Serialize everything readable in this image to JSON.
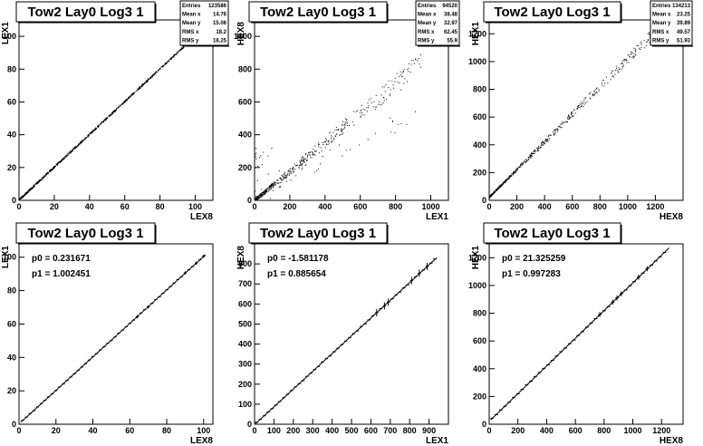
{
  "chart_data": [
    {
      "type": "scatter",
      "title": "Tow2 Lay0 Log3 1",
      "xlabel": "LEX8",
      "ylabel": "LEX1",
      "xlim": [
        0,
        110
      ],
      "ylim": [
        0,
        110
      ],
      "xticks": [
        0,
        20,
        40,
        60,
        80,
        100
      ],
      "yticks": [
        0,
        20,
        40,
        60,
        80,
        100
      ],
      "stats": [
        {
          "label": "Entries",
          "value": "123586"
        },
        {
          "label": "Mean x",
          "value": "14.76"
        },
        {
          "label": "Mean y",
          "value": "15.06"
        },
        {
          "label": "RMS x",
          "value": "18.2"
        },
        {
          "label": "RMS y",
          "value": "18.25"
        }
      ],
      "points": {
        "trend_slope": 1.0,
        "trend_intercept": 0.2,
        "x_range": [
          0,
          100
        ],
        "spread": 0.6
      }
    },
    {
      "type": "scatter",
      "title": "Tow2 Lay0 Log3 1",
      "xlabel": "LEX1",
      "ylabel": "HEX8",
      "xlim": [
        0,
        1100
      ],
      "ylim": [
        0,
        1100
      ],
      "xticks": [
        0,
        200,
        400,
        600,
        800,
        1000
      ],
      "yticks": [
        0,
        200,
        400,
        600,
        800,
        1000
      ],
      "stats": [
        {
          "label": "Entries",
          "value": "94520"
        },
        {
          "label": "Mean x",
          "value": "38.48"
        },
        {
          "label": "Mean y",
          "value": "32.97"
        },
        {
          "label": "RMS x",
          "value": "62.45"
        },
        {
          "label": "RMS y",
          "value": "55.9"
        }
      ],
      "points": {
        "trend_slope": 0.886,
        "trend_intercept": -1.6,
        "x_range": [
          0,
          950
        ],
        "spread": 25
      }
    },
    {
      "type": "scatter",
      "title": "Tow2 Lay0 Log3 1",
      "xlabel": "HEX8",
      "ylabel": "HEX1",
      "xlim": [
        0,
        1400
      ],
      "ylim": [
        0,
        1300
      ],
      "xticks": [
        0,
        200,
        400,
        600,
        800,
        1000,
        1200
      ],
      "yticks": [
        0,
        200,
        400,
        600,
        800,
        1000,
        1200
      ],
      "stats": [
        {
          "label": "Entries",
          "value": "134213"
        },
        {
          "label": "Mean x",
          "value": "23.25"
        },
        {
          "label": "Mean y",
          "value": "39.89"
        },
        {
          "label": "RMS x",
          "value": "49.57"
        },
        {
          "label": "RMS y",
          "value": "51.93"
        }
      ],
      "points": {
        "trend_slope": 0.997,
        "trend_intercept": 21.3,
        "x_range": [
          0,
          1200
        ],
        "spread": 12
      }
    },
    {
      "type": "line",
      "title": "Tow2 Lay0 Log3 1",
      "xlabel": "LEX8",
      "ylabel": "LEX1",
      "xlim": [
        0,
        105
      ],
      "ylim": [
        0,
        108
      ],
      "xticks": [
        0,
        20,
        40,
        60,
        80,
        100
      ],
      "yticks": [
        0,
        20,
        40,
        60,
        80,
        100
      ],
      "fit": {
        "p0_label": "p0 = 0.231671",
        "p1_label": "p1 = 1.002451",
        "p0": 0.231671,
        "p1": 1.002451
      },
      "profile": {
        "x_range": [
          2,
          100
        ],
        "step": 2
      }
    },
    {
      "type": "line",
      "title": "Tow2 Lay0 Log3 1",
      "xlabel": "LEX1",
      "ylabel": "HEX8",
      "xlim": [
        0,
        1000
      ],
      "ylim": [
        0,
        900
      ],
      "xticks": [
        0,
        100,
        200,
        300,
        400,
        500,
        600,
        700,
        800,
        900
      ],
      "yticks": [
        0,
        100,
        200,
        300,
        400,
        500,
        600,
        700,
        800
      ],
      "fit": {
        "p0_label": "p0 = -1.581178",
        "p1_label": "p1 = 0.885654",
        "p0": -1.581178,
        "p1": 0.885654
      },
      "profile": {
        "x_range": [
          10,
          930
        ],
        "step": 20
      }
    },
    {
      "type": "line",
      "title": "Tow2 Lay0 Log3 1",
      "xlabel": "HEX8",
      "ylabel": "HEX1",
      "xlim": [
        0,
        1350
      ],
      "ylim": [
        0,
        1300
      ],
      "xticks": [
        0,
        200,
        400,
        600,
        800,
        1000,
        1200
      ],
      "yticks": [
        0,
        200,
        400,
        600,
        800,
        1000,
        1200
      ],
      "fit": {
        "p0_label": "p0 = 21.325259",
        "p1_label": "p1 = 0.997283",
        "p0": 21.325259,
        "p1": 0.997283
      },
      "profile": {
        "x_range": [
          20,
          1240
        ],
        "step": 30
      }
    }
  ]
}
